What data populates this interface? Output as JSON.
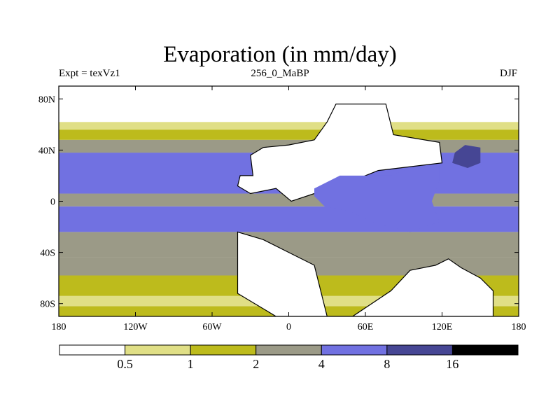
{
  "chart_data": {
    "type": "heatmap",
    "title": "Evaporation (in mm/day)",
    "subtitle_left": "Expt = texVz1",
    "subtitle_center": "256_0_MaBP",
    "subtitle_right": "DJF",
    "xlabel": "",
    "ylabel": "",
    "xlim": [
      -180,
      180
    ],
    "ylim": [
      -90,
      90
    ],
    "x_ticks": [
      {
        "value": -180,
        "label": "180"
      },
      {
        "value": -120,
        "label": "120W"
      },
      {
        "value": -60,
        "label": "60W"
      },
      {
        "value": 0,
        "label": "0"
      },
      {
        "value": 60,
        "label": "60E"
      },
      {
        "value": 120,
        "label": "120E"
      },
      {
        "value": 180,
        "label": "180"
      }
    ],
    "y_ticks": [
      {
        "value": 80,
        "label": "80N"
      },
      {
        "value": 40,
        "label": "40N"
      },
      {
        "value": 0,
        "label": "0"
      },
      {
        "value": -40,
        "label": "40S"
      },
      {
        "value": -80,
        "label": "80S"
      }
    ],
    "levels": [
      0.5,
      1,
      2,
      4,
      8,
      16
    ],
    "level_labels": [
      "0.5",
      "1",
      "2",
      "4",
      "8",
      "16"
    ],
    "bin_colors": [
      "#ffffff",
      "#e0df86",
      "#bdbb1c",
      "#9b9a87",
      "#7171e1",
      "#464694",
      "#000000"
    ],
    "bands": [
      {
        "lat": [
          -90,
          -82
        ],
        "bin": 2
      },
      {
        "lat": [
          -82,
          -74
        ],
        "bin": 1
      },
      {
        "lat": [
          -74,
          -58
        ],
        "bin": 2
      },
      {
        "lat": [
          -58,
          -44
        ],
        "bin": 3
      },
      {
        "lat": [
          -44,
          -24
        ],
        "bin": 3
      },
      {
        "lat": [
          -24,
          -4
        ],
        "bin": 4
      },
      {
        "lat": [
          -4,
          6
        ],
        "bin": 3
      },
      {
        "lat": [
          6,
          38
        ],
        "bin": 4
      },
      {
        "lat": [
          38,
          48
        ],
        "bin": 3
      },
      {
        "lat": [
          48,
          56
        ],
        "bin": 2
      },
      {
        "lat": [
          56,
          62
        ],
        "bin": 1
      },
      {
        "lat": [
          62,
          90
        ],
        "bin": 0
      }
    ],
    "regions": [
      {
        "name": "north-continent",
        "bin": 0,
        "coast": true,
        "points": [
          [
            -28,
            20
          ],
          [
            -30,
            36
          ],
          [
            -20,
            42
          ],
          [
            0,
            44
          ],
          [
            20,
            48
          ],
          [
            30,
            62
          ],
          [
            37,
            76
          ],
          [
            76,
            76
          ],
          [
            82,
            52
          ],
          [
            118,
            46
          ],
          [
            120,
            30
          ],
          [
            70,
            24
          ],
          [
            50,
            16
          ],
          [
            40,
            8
          ],
          [
            20,
            6
          ],
          [
            2,
            0
          ],
          [
            -10,
            10
          ],
          [
            -30,
            6
          ],
          [
            -40,
            12
          ],
          [
            -38,
            20
          ]
        ]
      },
      {
        "name": "south-continent",
        "bin": 0,
        "coast": true,
        "points": [
          [
            -40,
            -24
          ],
          [
            -40,
            -58
          ],
          [
            -40,
            -72
          ],
          [
            -30,
            -78
          ],
          [
            -20,
            -84
          ],
          [
            -10,
            -90
          ],
          [
            50,
            -90
          ],
          [
            80,
            -70
          ],
          [
            95,
            -54
          ],
          [
            115,
            -50
          ],
          [
            125,
            -45
          ],
          [
            135,
            -52
          ],
          [
            150,
            -60
          ],
          [
            160,
            -70
          ],
          [
            160,
            -90
          ],
          [
            30,
            -90
          ],
          [
            20,
            -50
          ],
          [
            0,
            -40
          ],
          [
            -20,
            -30
          ]
        ]
      },
      {
        "name": "northeast-warm-pool",
        "bin": 5,
        "points": [
          [
            130,
            38
          ],
          [
            138,
            44
          ],
          [
            150,
            42
          ],
          [
            150,
            30
          ],
          [
            140,
            26
          ],
          [
            128,
            30
          ]
        ]
      },
      {
        "name": "east-sea",
        "bin": 4,
        "points": [
          [
            20,
            10
          ],
          [
            40,
            20
          ],
          [
            80,
            20
          ],
          [
            95,
            26
          ],
          [
            118,
            28
          ],
          [
            118,
            16
          ],
          [
            112,
            0
          ],
          [
            118,
            -16
          ],
          [
            95,
            -24
          ],
          [
            70,
            -18
          ],
          [
            48,
            -8
          ],
          [
            28,
            -4
          ],
          [
            20,
            4
          ]
        ]
      }
    ]
  }
}
